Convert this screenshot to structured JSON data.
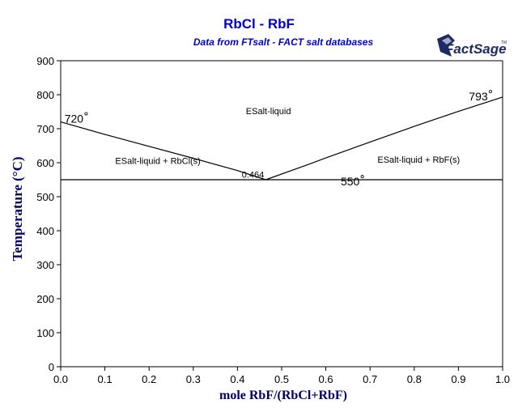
{
  "logo": {
    "text": "FactSage",
    "mark": "TM",
    "icon": "factsage-logo"
  },
  "colors": {
    "title": "#0000cc",
    "axis_label": "#000066",
    "line": "#000000"
  },
  "chart_data": {
    "type": "line",
    "title": "RbCl - RbF",
    "subtitle": "Data from FTsalt - FACT salt databases",
    "xlabel": "mole RbF/(RbCl+RbF)",
    "ylabel": "Temperature (°C)",
    "xlim": [
      0,
      1
    ],
    "ylim": [
      0,
      900
    ],
    "xticks": [
      "0.0",
      "0.1",
      "0.2",
      "0.3",
      "0.4",
      "0.5",
      "0.6",
      "0.7",
      "0.8",
      "0.9",
      "1.0"
    ],
    "yticks": [
      "0",
      "100",
      "200",
      "300",
      "400",
      "500",
      "600",
      "700",
      "800",
      "900"
    ],
    "grid": false,
    "series": [
      {
        "x": [
          0,
          0.1,
          0.2,
          0.3,
          0.4,
          0.464
        ],
        "y": [
          720,
          683,
          648,
          613,
          577,
          550
        ]
      },
      {
        "x": [
          0.464,
          0.55,
          0.6,
          0.7,
          0.8,
          0.9,
          1.0
        ],
        "y": [
          550,
          590,
          614,
          661,
          707,
          751,
          793
        ]
      },
      {
        "x": [
          0,
          1
        ],
        "y": [
          550,
          550
        ]
      }
    ],
    "annotations": [
      {
        "text": "720",
        "degree": true,
        "x": 0.03,
        "y": 718
      },
      {
        "text": "793",
        "degree": true,
        "x": 0.945,
        "y": 783
      },
      {
        "text": "550",
        "degree": true,
        "x": 0.655,
        "y": 533
      },
      {
        "text": "0.464",
        "degree": false,
        "x": 0.435,
        "y": 556
      },
      {
        "text": "ESalt-liquid",
        "degree": false,
        "x": 0.47,
        "y": 743
      },
      {
        "text": "ESalt-liquid + RbCl(s)",
        "degree": false,
        "x": 0.22,
        "y": 596
      },
      {
        "text": "ESalt-liquid + RbF(s)",
        "degree": false,
        "x": 0.81,
        "y": 600
      }
    ]
  }
}
